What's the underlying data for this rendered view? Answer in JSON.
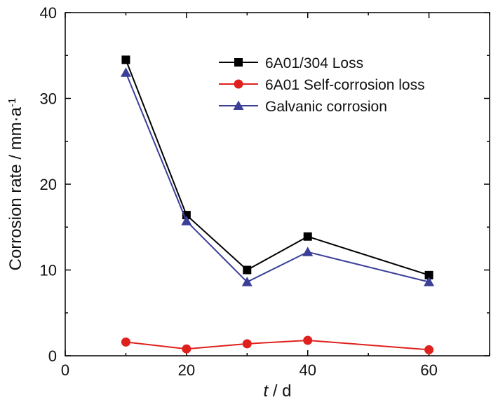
{
  "chart_data": {
    "type": "line",
    "title": "",
    "xlabel": {
      "italic": "t",
      "rest": " / d"
    },
    "ylabel": {
      "main": "Corrosion rate / mm·a",
      "sup": "-1"
    },
    "xlim": [
      0,
      70
    ],
    "ylim": [
      0,
      40
    ],
    "xticks": [
      0,
      20,
      40,
      60
    ],
    "yticks": [
      0,
      10,
      20,
      30,
      40
    ],
    "x_minor_step": 10,
    "y_minor_step": 5,
    "grid": false,
    "legend_position": "top-right",
    "x": [
      10,
      20,
      30,
      40,
      60
    ],
    "series": [
      {
        "name": "6A01/304 Loss",
        "values": [
          34.5,
          16.4,
          10.0,
          13.9,
          9.4
        ],
        "color": "#000000",
        "marker": "square"
      },
      {
        "name": "6A01 Self-corrosion loss",
        "values": [
          1.6,
          0.8,
          1.4,
          1.8,
          0.7
        ],
        "color": "#e0201c",
        "marker": "circle"
      },
      {
        "name": "Galvanic corrosion",
        "values": [
          33.0,
          15.7,
          8.6,
          12.1,
          8.6
        ],
        "color": "#3b3f98",
        "marker": "triangle"
      }
    ]
  }
}
